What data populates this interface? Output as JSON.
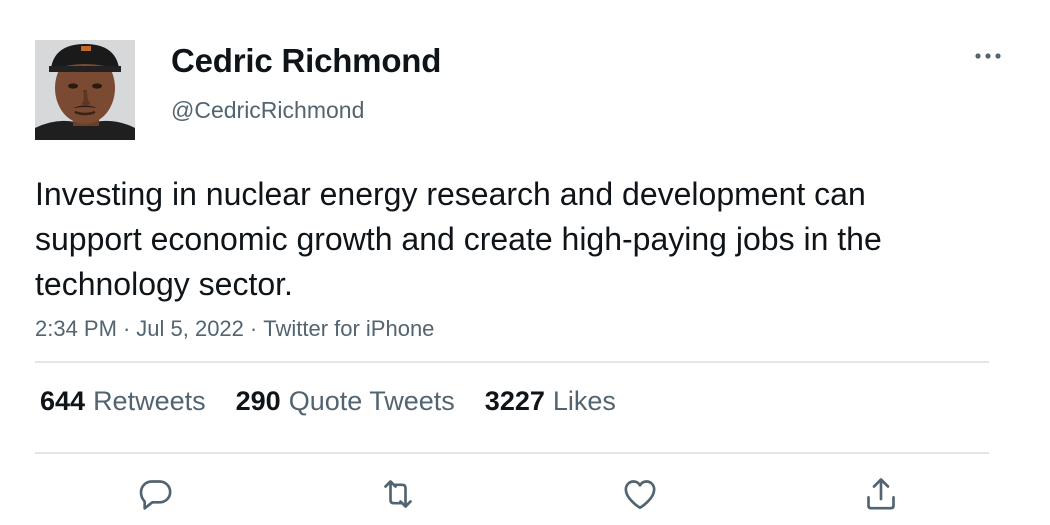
{
  "author": {
    "display_name": "Cedric Richmond",
    "handle": "@CedricRichmond"
  },
  "tweet": {
    "text": "Investing in nuclear energy research and development can support economic growth and create high-paying jobs in the technology sector.",
    "time": "2:34 PM",
    "date": "Jul 5, 2022",
    "source": "Twitter for iPhone",
    "separator": "·"
  },
  "stats": {
    "retweets": {
      "count": "644",
      "label": "Retweets"
    },
    "quote_tweets": {
      "count": "290",
      "label": "Quote Tweets"
    },
    "likes": {
      "count": "3227",
      "label": "Likes"
    }
  },
  "icons": {
    "more": "more-horizontal-icon",
    "reply": "reply-icon",
    "retweet": "retweet-icon",
    "like": "heart-icon",
    "share": "share-icon"
  },
  "colors": {
    "text_primary": "#0f1419",
    "text_secondary": "#536471",
    "divider": "#e3e6e8"
  }
}
